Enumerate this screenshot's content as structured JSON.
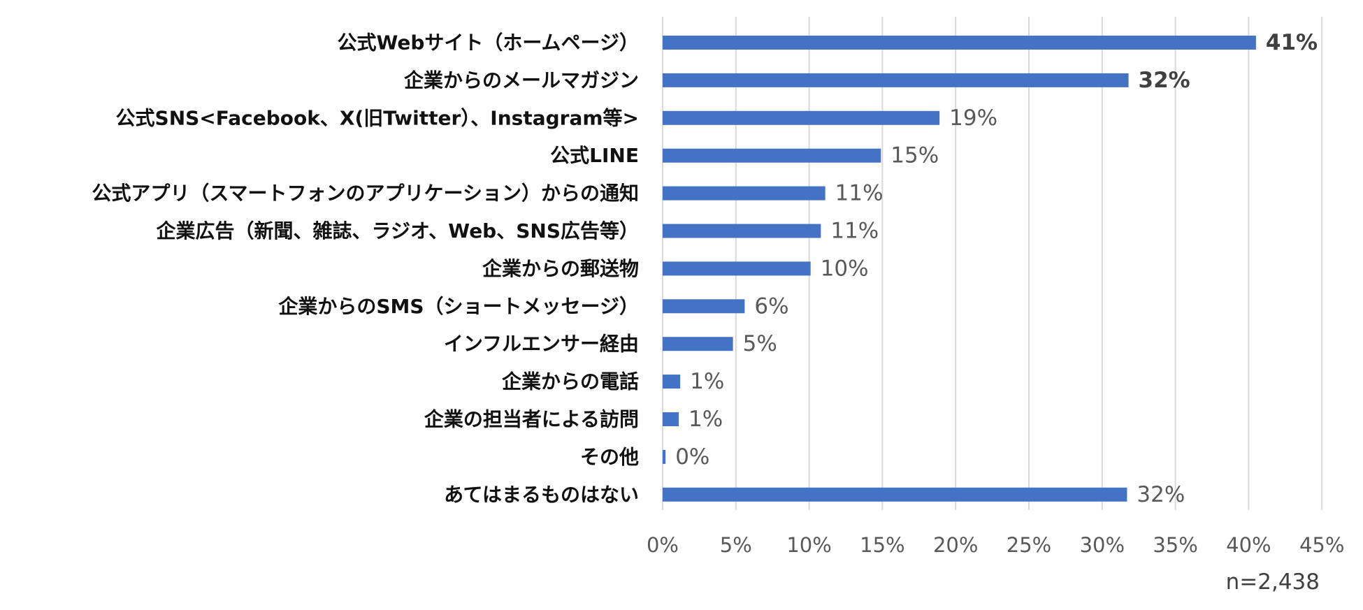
{
  "chart_data": {
    "type": "bar",
    "orientation": "horizontal",
    "categories": [
      "公式Webサイト（ホームページ）",
      "企業からのメールマガジン",
      "公式SNS<Facebook、X(旧Twitter）、Instagram等>",
      "公式LINE",
      "公式アプリ（スマートフォンのアプリケーション）からの通知",
      "企業広告（新聞、雑誌、ラジオ、Web、SNS広告等）",
      "企業からの郵送物",
      "企業からのSMS（ショートメッセージ）",
      "インフルエンサー経由",
      "企業からの電話",
      "企業の担当者による訪問",
      "その他",
      "あてはまるものはない"
    ],
    "values": [
      40.5,
      31.8,
      18.9,
      14.9,
      11.1,
      10.8,
      10.1,
      5.6,
      4.8,
      1.2,
      1.1,
      0.2,
      31.7
    ],
    "value_labels": [
      "41%",
      "32%",
      "19%",
      "15%",
      "11%",
      "11%",
      "10%",
      "6%",
      "5%",
      "1%",
      "1%",
      "0%",
      "32%"
    ],
    "emphasized_labels": [
      0,
      1
    ],
    "xlim": [
      0,
      45
    ],
    "x_ticks": [
      0,
      5,
      10,
      15,
      20,
      25,
      30,
      35,
      40,
      45
    ],
    "x_tick_labels": [
      "0%",
      "5%",
      "10%",
      "15%",
      "20%",
      "25%",
      "30%",
      "35%",
      "40%",
      "45%"
    ],
    "grid": true,
    "bar_color": "#4472c4",
    "note": "n=2,438",
    "title": "",
    "xlabel": "",
    "ylabel": ""
  }
}
